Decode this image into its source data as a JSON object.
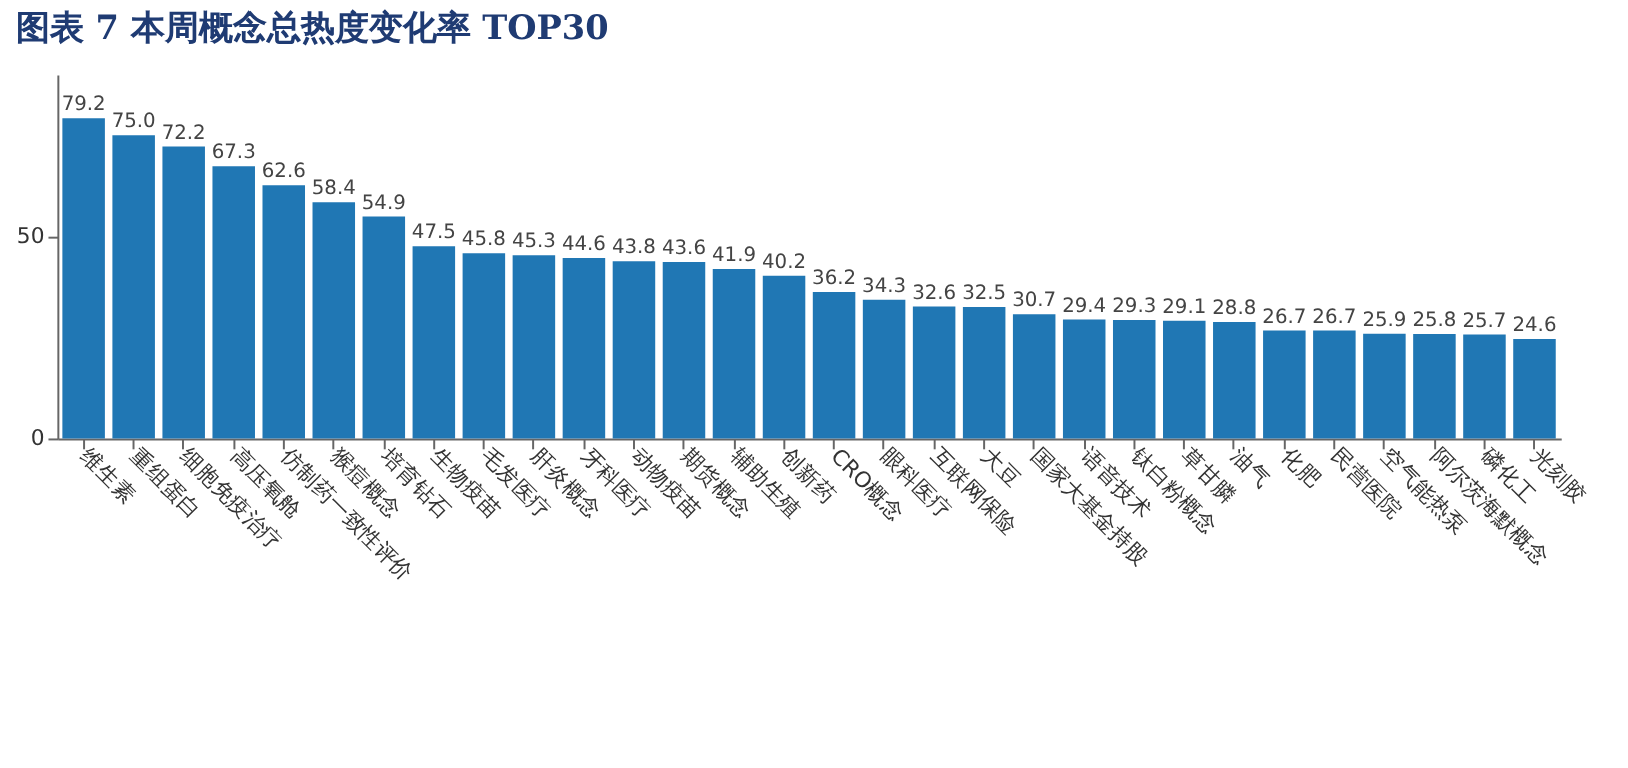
{
  "chart_data": {
    "type": "bar",
    "title": "图表 7 本周概念总热度变化率 TOP30",
    "categories": [
      "维生素",
      "重组蛋白",
      "细胞免疫治疗",
      "高压氧舱",
      "仿制药一致性评价",
      "猴痘概念",
      "培育钻石",
      "生物疫苗",
      "毛发医疗",
      "肝炎概念",
      "牙科医疗",
      "动物疫苗",
      "期货概念",
      "辅助生殖",
      "创新药",
      "CRO概念",
      "眼科医疗",
      "互联网保险",
      "大豆",
      "国家大基金持股",
      "语音技术",
      "钛白粉概念",
      "草甘膦",
      "油气",
      "化肥",
      "民营医院",
      "空气能热泵",
      "阿尔茨海默概念",
      "磷化工",
      "光刻胶"
    ],
    "values": [
      79.2,
      75.0,
      72.2,
      67.3,
      62.6,
      58.4,
      54.9,
      47.5,
      45.8,
      45.3,
      44.6,
      43.8,
      43.6,
      41.9,
      40.2,
      36.2,
      34.3,
      32.6,
      32.5,
      30.7,
      29.4,
      29.3,
      29.1,
      28.8,
      26.7,
      26.7,
      25.9,
      25.8,
      25.7,
      24.6
    ],
    "value_labels": [
      "79.2",
      "75.0",
      "72.2",
      "67.3",
      "62.6",
      "58.4",
      "54.9",
      "47.5",
      "45.8",
      "45.3",
      "44.6",
      "43.8",
      "43.6",
      "41.9",
      "40.2",
      "36.2",
      "34.3",
      "32.6",
      "32.5",
      "30.7",
      "29.4",
      "29.3",
      "29.1",
      "28.8",
      "26.7",
      "26.7",
      "25.9",
      "25.8",
      "25.7",
      "24.6"
    ],
    "color": "#2077b4",
    "ylim": [
      0,
      90
    ],
    "yticks": [
      0,
      50
    ],
    "grid": false
  }
}
